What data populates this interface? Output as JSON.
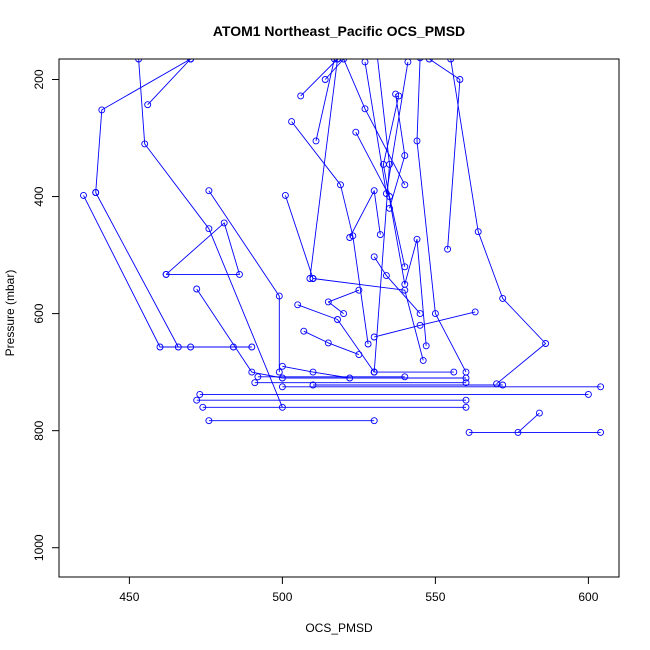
{
  "chart_data": {
    "type": "line",
    "title": "ATOM1 Northeast_Pacific OCS_PMSD",
    "xlabel": "OCS_PMSD",
    "ylabel": "Pressure (mbar)",
    "xlim": [
      427,
      610
    ],
    "ylim": [
      1050,
      165
    ],
    "y_reversed": true,
    "x_ticks": [
      450,
      500,
      550,
      600
    ],
    "y_ticks": [
      200,
      400,
      600,
      800,
      1000
    ],
    "grid": false,
    "legend": "none",
    "color": "#0000ff",
    "markers": "open-circle",
    "series": [
      {
        "values": [
          [
            435,
            398
          ],
          [
            460,
            657
          ],
          [
            470,
            657
          ],
          [
            484,
            657
          ]
        ]
      },
      {
        "values": [
          [
            439,
            393
          ],
          [
            441,
            252
          ],
          [
            470,
            165
          ]
        ]
      },
      {
        "values": [
          [
            439,
            393
          ],
          [
            466,
            657
          ],
          [
            490,
            657
          ]
        ]
      },
      {
        "values": [
          [
            453,
            165
          ],
          [
            455,
            310
          ],
          [
            476,
            455
          ],
          [
            500,
            760
          ]
        ]
      },
      {
        "values": [
          [
            456,
            243
          ],
          [
            470,
            165
          ]
        ]
      },
      {
        "values": [
          [
            462,
            533
          ],
          [
            481,
            445
          ],
          [
            486,
            533
          ],
          [
            462,
            533
          ]
        ]
      },
      {
        "values": [
          [
            472,
            558
          ],
          [
            490,
            700
          ],
          [
            500,
            710
          ],
          [
            560,
            710
          ]
        ]
      },
      {
        "values": [
          [
            476,
            390
          ],
          [
            499,
            570
          ],
          [
            499,
            700
          ]
        ]
      },
      {
        "values": [
          [
            473,
            738
          ],
          [
            600,
            738
          ]
        ]
      },
      {
        "values": [
          [
            474,
            760
          ],
          [
            560,
            760
          ]
        ]
      },
      {
        "values": [
          [
            476,
            783
          ],
          [
            530,
            783
          ]
        ]
      },
      {
        "values": [
          [
            472,
            748
          ],
          [
            560,
            748
          ]
        ]
      },
      {
        "values": [
          [
            500,
            725
          ],
          [
            604,
            725
          ]
        ]
      },
      {
        "values": [
          [
            491,
            718
          ],
          [
            560,
            718
          ]
        ]
      },
      {
        "values": [
          [
            492,
            708
          ],
          [
            540,
            708
          ]
        ]
      },
      {
        "values": [
          [
            510,
            722
          ],
          [
            572,
            722
          ]
        ]
      },
      {
        "values": [
          [
            530,
            700
          ],
          [
            556,
            700
          ]
        ]
      },
      {
        "values": [
          [
            561,
            803
          ],
          [
            604,
            803
          ]
        ]
      },
      {
        "values": [
          [
            584,
            770
          ],
          [
            577,
            803
          ]
        ]
      },
      {
        "values": [
          [
            500,
            690
          ],
          [
            510,
            700
          ],
          [
            522,
            710
          ]
        ]
      },
      {
        "values": [
          [
            505,
            585
          ],
          [
            518,
            610
          ],
          [
            530,
            700
          ]
        ]
      },
      {
        "values": [
          [
            506,
            228
          ],
          [
            518,
            165
          ]
        ]
      },
      {
        "values": [
          [
            501,
            398
          ],
          [
            510,
            540
          ]
        ]
      },
      {
        "values": [
          [
            503,
            272
          ],
          [
            519,
            380
          ],
          [
            523,
            467
          ],
          [
            528,
            652
          ]
        ]
      },
      {
        "values": [
          [
            509,
            540
          ],
          [
            518,
            165
          ]
        ]
      },
      {
        "values": [
          [
            507,
            630
          ],
          [
            515,
            650
          ],
          [
            525,
            670
          ]
        ]
      },
      {
        "values": [
          [
            511,
            305
          ],
          [
            517,
            165
          ]
        ]
      },
      {
        "values": [
          [
            514,
            200
          ],
          [
            520,
            165
          ],
          [
            527,
            250
          ],
          [
            540,
            380
          ]
        ]
      },
      {
        "values": [
          [
            522,
            470
          ],
          [
            530,
            390
          ],
          [
            532,
            465
          ]
        ]
      },
      {
        "values": [
          [
            524,
            290
          ],
          [
            535,
            400
          ],
          [
            540,
            520
          ]
        ]
      },
      {
        "values": [
          [
            527,
            170
          ],
          [
            534,
            395
          ],
          [
            541,
            170
          ]
        ]
      },
      {
        "values": [
          [
            530,
            503
          ],
          [
            534,
            535
          ],
          [
            545,
            600
          ]
        ]
      },
      {
        "values": [
          [
            531,
            160
          ],
          [
            535,
            345
          ],
          [
            530,
            700
          ]
        ]
      },
      {
        "values": [
          [
            535,
            420
          ],
          [
            540,
            330
          ],
          [
            537,
            225
          ]
        ]
      },
      {
        "values": [
          [
            538,
            228
          ],
          [
            533,
            345
          ],
          [
            540,
            550
          ],
          [
            544,
            473
          ],
          [
            547,
            655
          ]
        ]
      },
      {
        "values": [
          [
            545,
            163
          ],
          [
            544,
            305
          ],
          [
            550,
            600
          ],
          [
            560,
            700
          ]
        ]
      },
      {
        "values": [
          [
            548,
            165
          ],
          [
            558,
            200
          ],
          [
            554,
            490
          ]
        ]
      },
      {
        "values": [
          [
            555,
            165
          ],
          [
            564,
            460
          ],
          [
            572,
            574
          ],
          [
            586,
            651
          ],
          [
            570,
            720
          ]
        ]
      },
      {
        "values": [
          [
            563,
            597
          ],
          [
            545,
            620
          ],
          [
            530,
            640
          ]
        ]
      },
      {
        "values": [
          [
            520,
            600
          ],
          [
            515,
            580
          ],
          [
            525,
            560
          ]
        ]
      },
      {
        "values": [
          [
            510,
            540
          ],
          [
            540,
            560
          ],
          [
            546,
            680
          ]
        ]
      }
    ]
  }
}
